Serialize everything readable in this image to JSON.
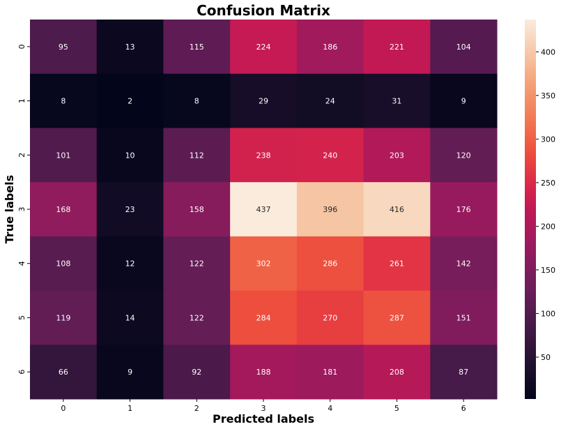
{
  "chart_data": {
    "type": "heatmap",
    "title": "Confusion Matrix",
    "xlabel": "Predicted labels",
    "ylabel": "True labels",
    "x_categories": [
      "0",
      "1",
      "2",
      "3",
      "4",
      "5",
      "6"
    ],
    "y_categories": [
      "0",
      "1",
      "2",
      "3",
      "4",
      "5",
      "6"
    ],
    "values": [
      [
        95,
        13,
        115,
        224,
        186,
        221,
        104
      ],
      [
        8,
        2,
        8,
        29,
        24,
        31,
        9
      ],
      [
        101,
        10,
        112,
        238,
        240,
        203,
        120
      ],
      [
        168,
        23,
        158,
        437,
        396,
        416,
        176
      ],
      [
        108,
        12,
        122,
        302,
        286,
        261,
        142
      ],
      [
        119,
        14,
        122,
        284,
        270,
        287,
        151
      ],
      [
        66,
        9,
        92,
        188,
        181,
        208,
        87
      ]
    ],
    "colormap": "rocket",
    "vmin": 2,
    "vmax": 437,
    "colorbar_ticks": [
      50,
      100,
      150,
      200,
      250,
      300,
      350,
      400
    ],
    "annotations": true
  }
}
